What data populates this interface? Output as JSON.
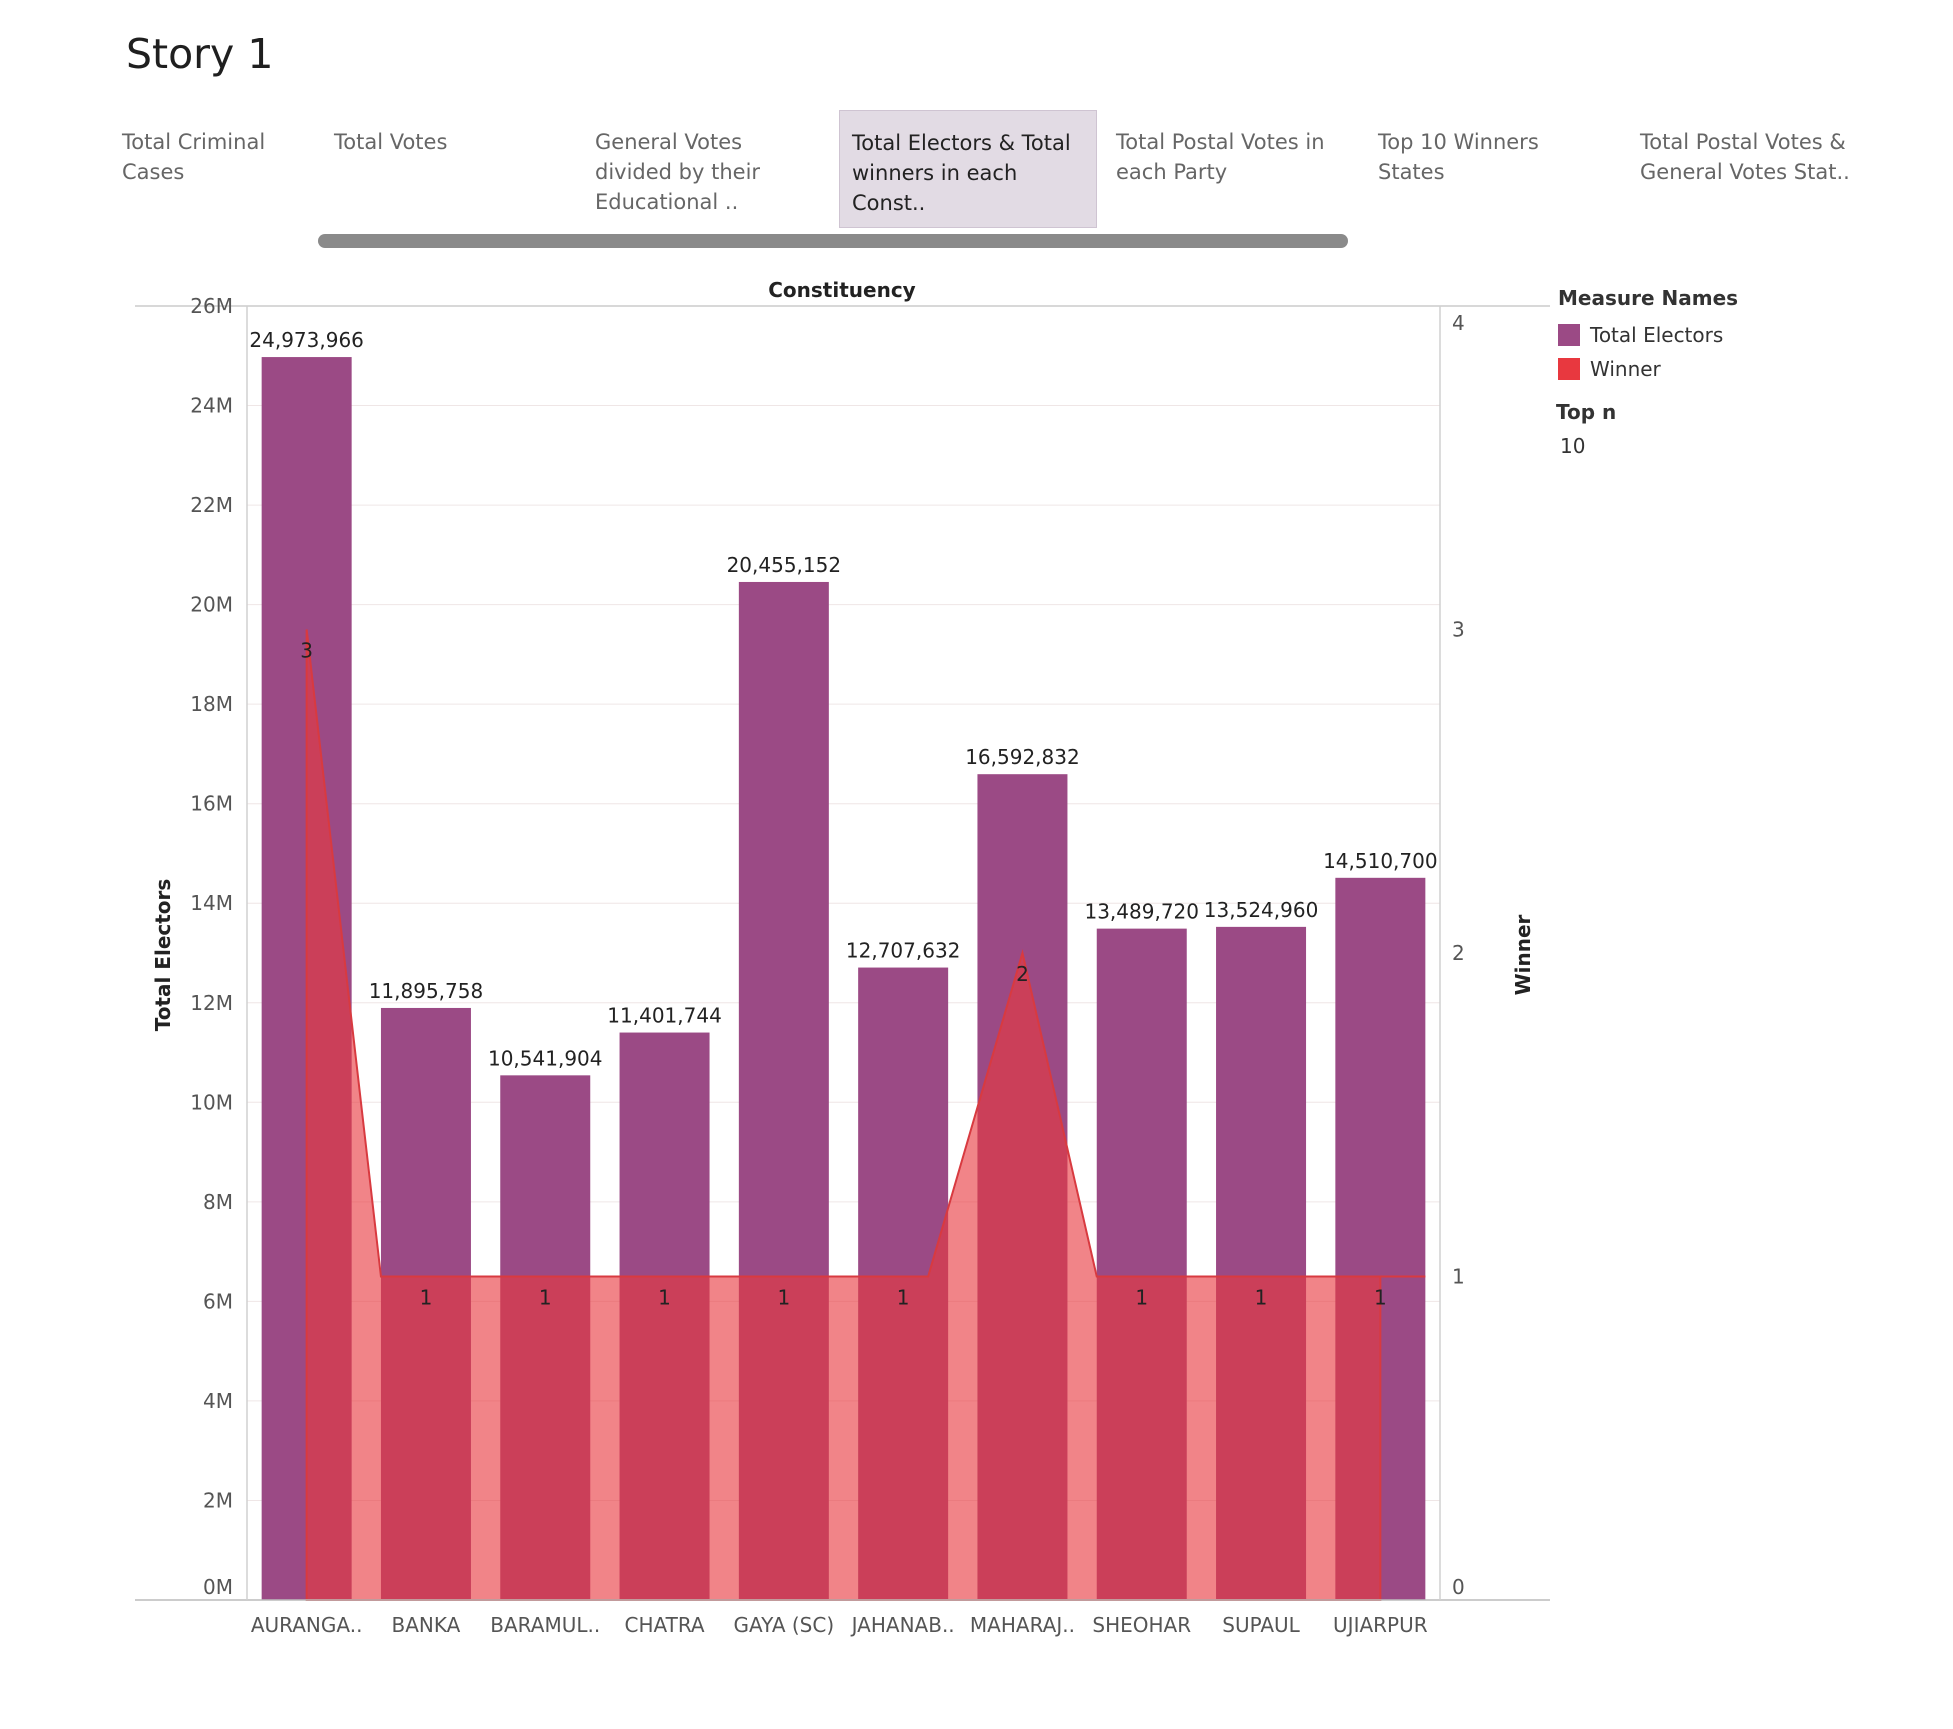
{
  "story": {
    "title": "Story 1"
  },
  "tabs": [
    {
      "label": "Total Criminal Cases",
      "active": false
    },
    {
      "label": "Total Votes",
      "active": false
    },
    {
      "label": "General Votes divided by their Educational ..",
      "active": false
    },
    {
      "label": "Total Electors & Total winners in each Const..",
      "active": true
    },
    {
      "label": "Total Postal Votes in each Party",
      "active": false
    },
    {
      "label": "Top 10 Winners States",
      "active": false
    },
    {
      "label": "Total Postal Votes & General Votes Stat..",
      "active": false
    }
  ],
  "legend": {
    "title": "Measure Names",
    "items": [
      {
        "label": "Total Electors",
        "color": "#9b4a85"
      },
      {
        "label": "Winner",
        "color": "#e8383f"
      }
    ]
  },
  "filter": {
    "label": "Top n",
    "value": "10"
  },
  "chart_data": {
    "type": "bar",
    "title": "Constituency",
    "xlabel": "",
    "ylabel": "Total Electors",
    "y2label": "Winner",
    "categories": [
      "AURANGA..",
      "BANKA",
      "BARAMUL..",
      "CHATRA",
      "GAYA (SC)",
      "JAHANAB..",
      "MAHARAJ..",
      "SHEOHAR",
      "SUPAUL",
      "UJIARPUR"
    ],
    "series": [
      {
        "name": "Total Electors",
        "type": "bar",
        "axis": "left",
        "color": "#9b4a85",
        "values": [
          24973966,
          11895758,
          10541904,
          11401744,
          20455152,
          12707632,
          16592832,
          13489720,
          13524960,
          14510700
        ],
        "labels": [
          "24,973,966",
          "11,895,758",
          "10,541,904",
          "11,401,744",
          "20,455,152",
          "12,707,632",
          "16,592,832",
          "13,489,720",
          "13,524,960",
          "14,510,700"
        ]
      },
      {
        "name": "Winner",
        "type": "area",
        "axis": "right",
        "color": "#e8383f",
        "values": [
          3,
          1,
          1,
          1,
          1,
          1,
          2,
          1,
          1,
          1
        ],
        "labels": [
          "3",
          "1",
          "1",
          "1",
          "1",
          "1",
          "2",
          "1",
          "1",
          "1"
        ]
      }
    ],
    "ylim": [
      0,
      26000000
    ],
    "y2lim": [
      0,
      4
    ],
    "yticks": [
      0,
      2000000,
      4000000,
      6000000,
      8000000,
      10000000,
      12000000,
      14000000,
      16000000,
      18000000,
      20000000,
      22000000,
      24000000,
      26000000
    ],
    "yticklabels": [
      "0M",
      "2M",
      "4M",
      "6M",
      "8M",
      "10M",
      "12M",
      "14M",
      "16M",
      "18M",
      "20M",
      "22M",
      "24M",
      "26M"
    ],
    "y2ticks": [
      0,
      1,
      2,
      3,
      4
    ],
    "y2ticklabels": [
      "0",
      "1",
      "2",
      "3",
      "4"
    ],
    "legend_position": "right"
  }
}
